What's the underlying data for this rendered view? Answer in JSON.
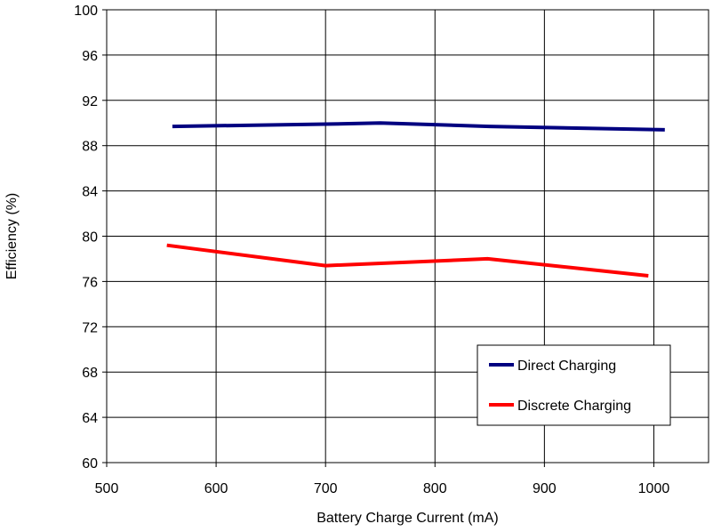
{
  "chart_data": {
    "type": "line",
    "title": "",
    "xlabel": "Battery Charge Current (mA)",
    "ylabel": "Efficiency (%)",
    "xlim": [
      500,
      1050
    ],
    "ylim": [
      60,
      100
    ],
    "xticks": [
      500,
      600,
      700,
      800,
      900,
      1000
    ],
    "yticks": [
      60,
      64,
      68,
      72,
      76,
      80,
      84,
      88,
      92,
      96,
      100
    ],
    "grid": true,
    "legend_position": "bottom-right",
    "series": [
      {
        "name": "Direct Charging",
        "color": "#000080",
        "x": [
          560,
          700,
          750,
          850,
          1010
        ],
        "y": [
          89.7,
          89.9,
          90.0,
          89.7,
          89.4
        ]
      },
      {
        "name": "Discrete Charging",
        "color": "#ff0000",
        "x": [
          555,
          700,
          848,
          995
        ],
        "y": [
          79.2,
          77.4,
          78.0,
          76.5
        ]
      }
    ]
  }
}
